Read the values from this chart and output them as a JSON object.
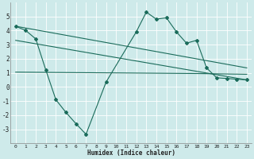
{
  "xlabel": "Humidex (Indice chaleur)",
  "background_color": "#ceeaea",
  "grid_color": "#b8d8d8",
  "line_color": "#1a6b5a",
  "x_ticks": [
    0,
    1,
    2,
    3,
    4,
    5,
    6,
    7,
    8,
    9,
    10,
    11,
    12,
    13,
    14,
    15,
    16,
    17,
    18,
    19,
    20,
    21,
    22,
    23
  ],
  "ylim": [
    -4,
    6
  ],
  "xlim": [
    -0.5,
    23.5
  ],
  "series1_x": [
    0,
    1,
    2,
    3,
    4,
    5,
    6,
    7,
    9,
    12,
    13,
    14,
    15,
    16,
    17,
    18,
    19,
    20,
    21,
    22,
    23
  ],
  "series1_y": [
    4.3,
    4.0,
    3.4,
    1.2,
    -0.9,
    -1.8,
    -2.6,
    -3.35,
    0.35,
    3.9,
    5.3,
    4.8,
    4.9,
    3.9,
    3.1,
    3.3,
    1.35,
    0.65,
    0.6,
    0.55,
    0.5
  ],
  "series2_x": [
    0,
    23
  ],
  "series2_y": [
    4.3,
    1.35
  ],
  "series3_x": [
    0,
    23
  ],
  "series3_y": [
    3.3,
    0.5
  ],
  "series4_x": [
    0,
    18,
    23
  ],
  "series4_y": [
    1.05,
    0.95,
    0.9
  ],
  "yticks": [
    -3,
    -2,
    -1,
    0,
    1,
    2,
    3,
    4,
    5
  ]
}
